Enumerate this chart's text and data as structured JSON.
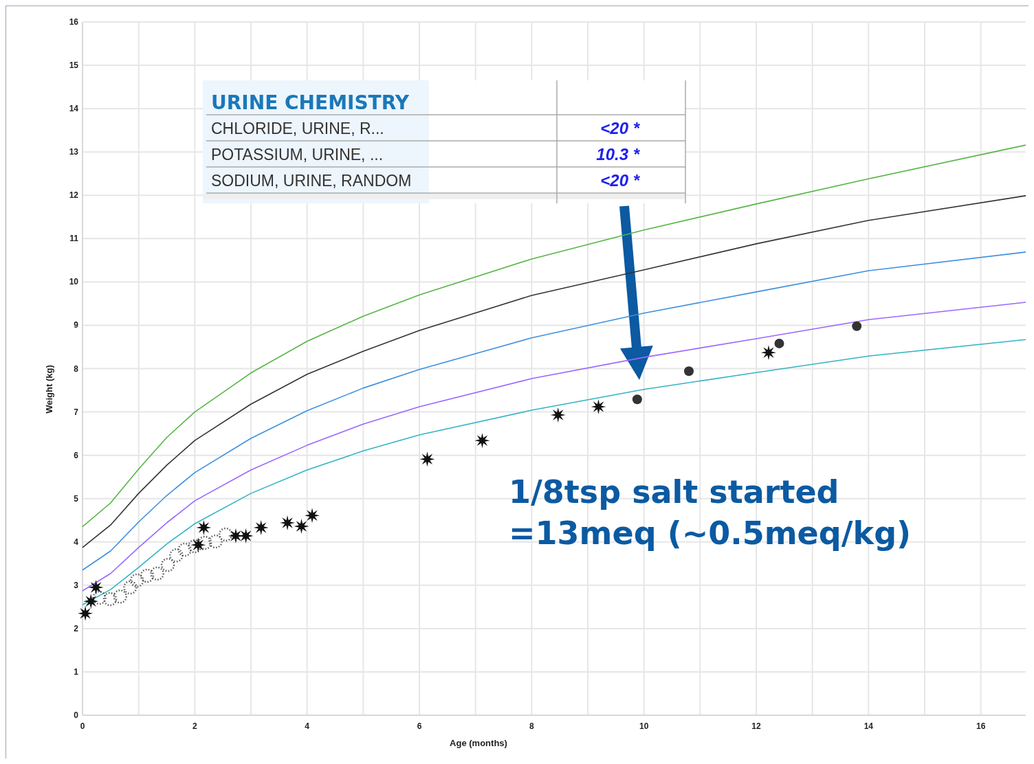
{
  "chart_data": {
    "type": "line",
    "xlabel": "Age (months)",
    "ylabel": "Weight (kg)",
    "xlim": [
      0,
      16.8
    ],
    "ylim": [
      0,
      16
    ],
    "xticks": [
      0,
      {
        "value": 1,
        "label": null
      },
      2,
      {
        "value": 3,
        "label": null
      },
      4,
      {
        "value": 5,
        "label": null
      },
      6,
      {
        "value": 7,
        "label": null
      },
      8,
      {
        "value": 9,
        "label": null
      },
      10,
      {
        "value": 11,
        "label": null
      },
      12,
      {
        "value": 13,
        "label": null
      },
      14,
      {
        "value": 15,
        "label": null
      },
      16
    ],
    "yticks": [
      0,
      1,
      2,
      3,
      4,
      5,
      6,
      7,
      8,
      9,
      10,
      11,
      12,
      13,
      14,
      15,
      16
    ],
    "grid": true,
    "series": [
      {
        "color": "#55b545",
        "x": [
          0,
          0.5,
          1,
          1.5,
          2,
          3,
          4,
          5,
          6,
          8,
          10,
          12,
          14,
          16.8
        ],
        "values": [
          4.35,
          4.9,
          5.68,
          6.41,
          7.0,
          7.9,
          8.63,
          9.21,
          9.7,
          10.53,
          11.2,
          11.8,
          12.38,
          13.16
        ]
      },
      {
        "color": "#333333",
        "x": [
          0,
          0.5,
          1,
          1.5,
          2,
          3,
          4,
          5,
          6,
          8,
          10,
          12,
          14,
          16.8
        ],
        "values": [
          3.87,
          4.39,
          5.12,
          5.77,
          6.34,
          7.18,
          7.87,
          8.4,
          8.88,
          9.69,
          10.28,
          10.88,
          11.42,
          11.99
        ]
      },
      {
        "color": "#3d8fe0",
        "x": [
          0,
          0.5,
          1,
          1.5,
          2,
          3,
          4,
          5,
          6,
          8,
          10,
          12,
          14,
          16.8
        ],
        "values": [
          3.35,
          3.79,
          4.46,
          5.07,
          5.6,
          6.39,
          7.03,
          7.55,
          7.98,
          8.71,
          9.28,
          9.77,
          10.26,
          10.69
        ]
      },
      {
        "color": "#9966ff",
        "x": [
          0,
          0.5,
          1,
          1.5,
          2,
          3,
          4,
          5,
          6,
          8,
          10,
          12,
          14,
          16.8
        ],
        "values": [
          2.87,
          3.27,
          3.87,
          4.44,
          4.95,
          5.66,
          6.23,
          6.72,
          7.12,
          7.77,
          8.26,
          8.69,
          9.13,
          9.53
        ]
      },
      {
        "color": "#33b3c4",
        "x": [
          0,
          0.5,
          1,
          1.5,
          2,
          3,
          4,
          5,
          6,
          8,
          10,
          12,
          14,
          16.8
        ],
        "values": [
          2.55,
          2.9,
          3.41,
          3.95,
          4.42,
          5.12,
          5.66,
          6.1,
          6.47,
          7.04,
          7.52,
          7.91,
          8.29,
          8.67
        ]
      },
      {
        "type": "scatter",
        "color": "#555555",
        "marker": "circle",
        "line_style": "dotted",
        "x": [
          0.3,
          0.49,
          0.67,
          0.85,
          0.97,
          1.15,
          1.33,
          1.52,
          1.67,
          1.82,
          2.0,
          2.18,
          2.37,
          2.55
        ],
        "values": [
          2.71,
          2.68,
          2.74,
          2.95,
          3.11,
          3.22,
          3.27,
          3.47,
          3.69,
          3.82,
          3.9,
          3.98,
          4.01,
          4.17
        ]
      },
      {
        "type": "scatter",
        "color": "#111111",
        "marker": "star",
        "x": [
          0.05,
          0.15,
          0.24,
          2.06,
          2.16,
          2.73,
          2.91,
          3.18,
          3.65,
          3.9,
          4.09,
          6.14,
          7.12,
          8.47,
          9.19,
          12.22
        ],
        "values": [
          2.35,
          2.63,
          2.95,
          3.93,
          4.33,
          4.14,
          4.14,
          4.33,
          4.44,
          4.36,
          4.61,
          5.91,
          6.34,
          6.93,
          7.12,
          8.37
        ]
      },
      {
        "type": "scatter",
        "color": "#333333",
        "marker": "circle",
        "x": [
          9.88,
          10.8,
          12.41,
          13.79
        ],
        "values": [
          7.29,
          7.94,
          8.58,
          8.98
        ]
      }
    ],
    "annotations": [
      "1/8tsp salt started\n=13meq (~0.5meq/kg)",
      "URINE CHEMISTRY",
      "CHLORIDE, URINE, R...",
      "<20 *",
      "POTASSIUM, URINE, ...",
      "10.3 *",
      "SODIUM, URINE, RANDOM",
      "<20 *"
    ]
  }
}
